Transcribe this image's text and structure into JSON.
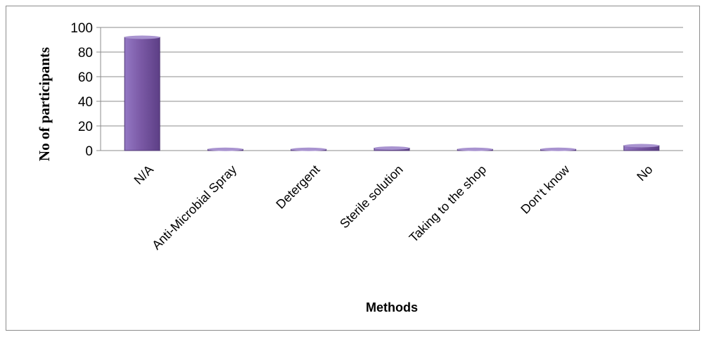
{
  "chart_data": {
    "type": "bar",
    "title": "",
    "xlabel": "Methods",
    "ylabel": "No of participants",
    "categories": [
      "N/A",
      "Anti-Microbial Spray",
      "Detergent",
      "Sterile solution",
      "Taking to the shop",
      "Don’t know",
      "No"
    ],
    "values": [
      92,
      1,
      1,
      2,
      1,
      1,
      4
    ],
    "ylim": [
      0,
      100
    ],
    "yticks": [
      0,
      20,
      40,
      60,
      80,
      100
    ],
    "grid": true,
    "legend": "none",
    "bar_color": "#7b5aa6"
  }
}
